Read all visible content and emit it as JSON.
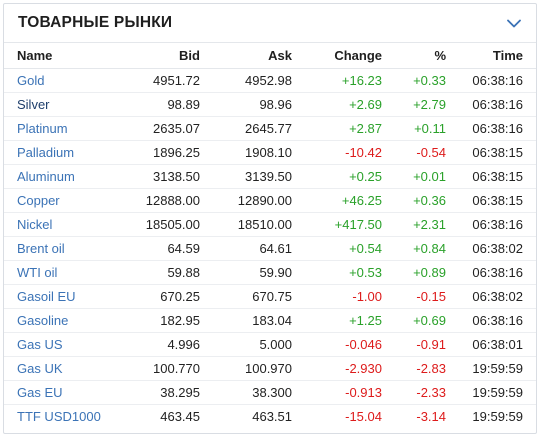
{
  "widget": {
    "title": "ТОВАРНЫЕ РЫНКИ",
    "collapse_icon": "chevron-down-icon",
    "accent_color": "#3b73b6"
  },
  "columns": {
    "name": "Name",
    "bid": "Bid",
    "ask": "Ask",
    "change": "Change",
    "pct": "%",
    "time": "Time"
  },
  "colors": {
    "positive": "#2aa12a",
    "negative": "#dd1b1b"
  },
  "rows": [
    {
      "name": "Gold",
      "bid": "4951.72",
      "ask": "4952.98",
      "change": "+16.23",
      "pct": "+0.33",
      "time": "06:38:16",
      "dir": "pos"
    },
    {
      "name": "Silver",
      "bid": "98.89",
      "ask": "98.96",
      "change": "+2.69",
      "pct": "+2.79",
      "time": "06:38:16",
      "dir": "pos"
    },
    {
      "name": "Platinum",
      "bid": "2635.07",
      "ask": "2645.77",
      "change": "+2.87",
      "pct": "+0.11",
      "time": "06:38:16",
      "dir": "pos"
    },
    {
      "name": "Palladium",
      "bid": "1896.25",
      "ask": "1908.10",
      "change": "-10.42",
      "pct": "-0.54",
      "time": "06:38:15",
      "dir": "neg"
    },
    {
      "name": "Aluminum",
      "bid": "3138.50",
      "ask": "3139.50",
      "change": "+0.25",
      "pct": "+0.01",
      "time": "06:38:15",
      "dir": "pos"
    },
    {
      "name": "Copper",
      "bid": "12888.00",
      "ask": "12890.00",
      "change": "+46.25",
      "pct": "+0.36",
      "time": "06:38:15",
      "dir": "pos"
    },
    {
      "name": "Nickel",
      "bid": "18505.00",
      "ask": "18510.00",
      "change": "+417.50",
      "pct": "+2.31",
      "time": "06:38:16",
      "dir": "pos"
    },
    {
      "name": "Brent oil",
      "bid": "64.59",
      "ask": "64.61",
      "change": "+0.54",
      "pct": "+0.84",
      "time": "06:38:02",
      "dir": "pos"
    },
    {
      "name": "WTI oil",
      "bid": "59.88",
      "ask": "59.90",
      "change": "+0.53",
      "pct": "+0.89",
      "time": "06:38:16",
      "dir": "pos"
    },
    {
      "name": "Gasoil EU",
      "bid": "670.25",
      "ask": "670.75",
      "change": "-1.00",
      "pct": "-0.15",
      "time": "06:38:02",
      "dir": "neg"
    },
    {
      "name": "Gasoline",
      "bid": "182.95",
      "ask": "183.04",
      "change": "+1.25",
      "pct": "+0.69",
      "time": "06:38:16",
      "dir": "pos"
    },
    {
      "name": "Gas US",
      "bid": "4.996",
      "ask": "5.000",
      "change": "-0.046",
      "pct": "-0.91",
      "time": "06:38:01",
      "dir": "neg"
    },
    {
      "name": "Gas UK",
      "bid": "100.770",
      "ask": "100.970",
      "change": "-2.930",
      "pct": "-2.83",
      "time": "19:59:59",
      "dir": "neg"
    },
    {
      "name": "Gas EU",
      "bid": "38.295",
      "ask": "38.300",
      "change": "-0.913",
      "pct": "-2.33",
      "time": "19:59:59",
      "dir": "neg"
    },
    {
      "name": "TTF USD1000",
      "bid": "463.45",
      "ask": "463.51",
      "change": "-15.04",
      "pct": "-3.14",
      "time": "19:59:59",
      "dir": "neg"
    }
  ]
}
